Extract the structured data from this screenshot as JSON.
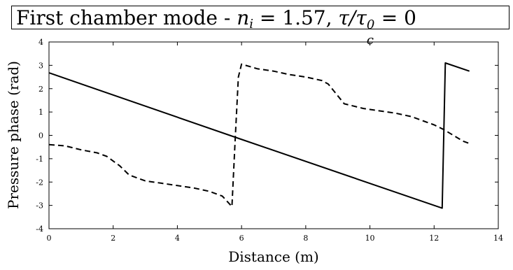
{
  "title": {
    "prefix": "First chamber mode - ",
    "n_sym": "n",
    "n_sub": "i",
    "n_eq": " = 1.57, ",
    "tau_sym": "τ/τ",
    "tau_sub": "c",
    "tau_sup": "0",
    "tau_eq": " = 0"
  },
  "chart_data": {
    "type": "line",
    "title": "First chamber mode - n_i = 1.57, τ/τ_c^0 = 0",
    "xlabel": "Distance (m)",
    "ylabel": "Pressure phase (rad)",
    "xlim": [
      0,
      14
    ],
    "ylim": [
      -4,
      4
    ],
    "xticks": [
      "0",
      "2",
      "4",
      "6",
      "8",
      "10",
      "12",
      "14"
    ],
    "yticks": [
      "-4",
      "-3",
      "-2",
      "-1",
      "0",
      "1",
      "2",
      "3",
      "4"
    ],
    "grid": false,
    "legend": "none",
    "series": [
      {
        "style": "solid",
        "x": [
          0,
          5.95,
          5.95,
          12.25,
          12.35,
          13.1
        ],
        "y": [
          2.68,
          -0.15,
          -0.15,
          -3.12,
          3.1,
          2.75
        ]
      },
      {
        "style": "dashed",
        "x": [
          0,
          0.5,
          1.0,
          1.5,
          1.8,
          2.2,
          2.5,
          3.0,
          3.5,
          4.0,
          4.5,
          5.0,
          5.4,
          5.7,
          5.8,
          5.9,
          6.0,
          6.5,
          7.0,
          7.5,
          8.0,
          8.5,
          8.7,
          9.2,
          9.8,
          10.3,
          10.8,
          11.3,
          11.7,
          12.0,
          12.3,
          12.6,
          12.9,
          13.1
        ],
        "y": [
          -0.4,
          -0.45,
          -0.62,
          -0.75,
          -0.9,
          -1.3,
          -1.7,
          -1.95,
          -2.05,
          -2.15,
          -2.25,
          -2.4,
          -2.6,
          -3.05,
          -0.2,
          2.5,
          3.05,
          2.85,
          2.75,
          2.6,
          2.5,
          2.35,
          2.2,
          1.35,
          1.15,
          1.05,
          0.95,
          0.8,
          0.6,
          0.45,
          0.25,
          0.0,
          -0.25,
          -0.35
        ]
      }
    ]
  }
}
